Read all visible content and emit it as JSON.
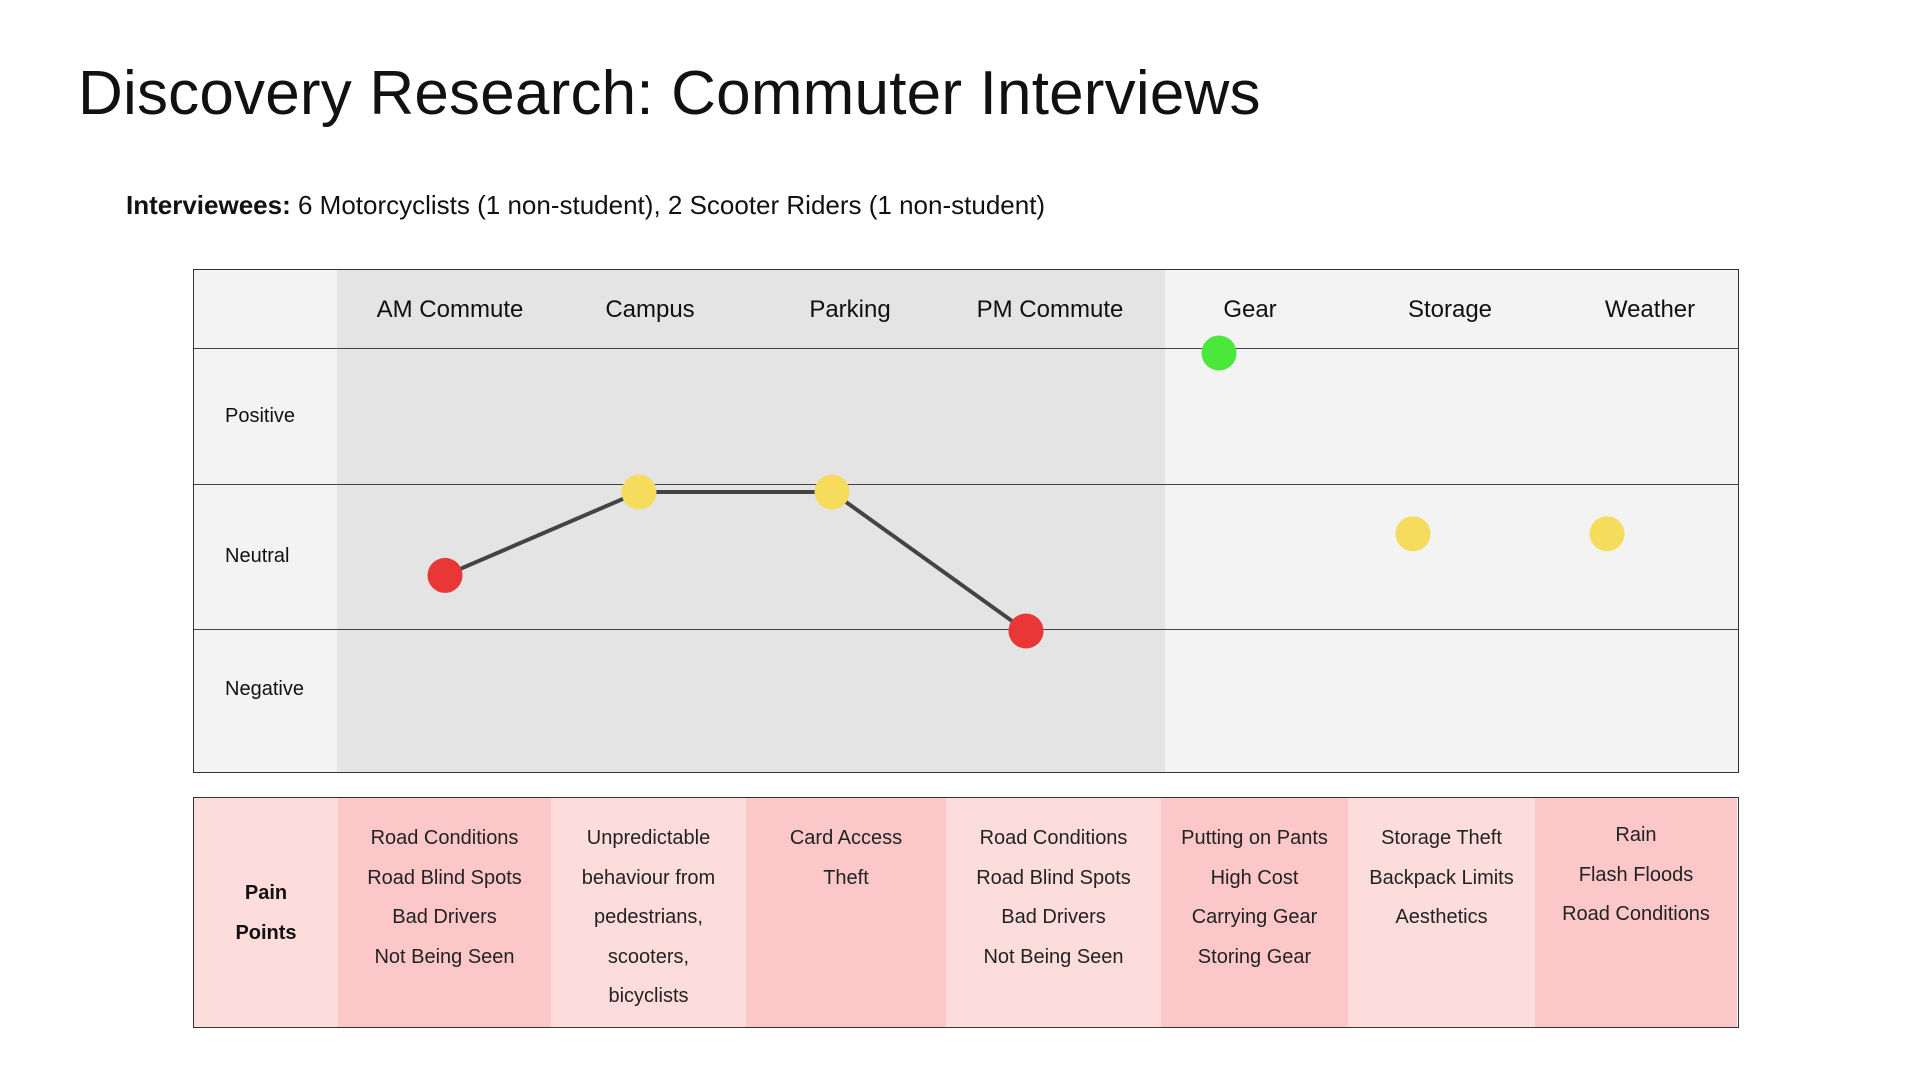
{
  "title": "Discovery Research: Commuter Interviews",
  "interviewees": {
    "label": "Interviewees:",
    "text": " 6 Motorcyclists (1 non-student), 2 Scooter Riders (1 non-student)"
  },
  "colors": {
    "positive": "#4ce73b",
    "neutral": "#f5dc5d",
    "negative": "#e93738",
    "line": "#444444",
    "shade": "#e4e4e4",
    "panel": "#f3f3f3",
    "pain_light": "#fddcdc",
    "pain_dark": "#fcc7c8"
  },
  "chart_data": {
    "type": "line",
    "categories": [
      "AM Commute",
      "Campus",
      "Parking",
      "PM Commute",
      "Gear",
      "Storage",
      "Weather"
    ],
    "levels": [
      "Positive",
      "Neutral",
      "Negative"
    ],
    "level_scale": {
      "Positive": 1,
      "Neutral": 0,
      "Negative": -1
    },
    "connected_categories": [
      "AM Commute",
      "Campus",
      "Parking",
      "PM Commute"
    ],
    "points": [
      {
        "category": "AM Commute",
        "sentiment": "Negative",
        "value": -0.6
      },
      {
        "category": "Campus",
        "sentiment": "Neutral",
        "value": 0.0
      },
      {
        "category": "Parking",
        "sentiment": "Neutral",
        "value": 0.0
      },
      {
        "category": "PM Commute",
        "sentiment": "Negative",
        "value": -1.0
      },
      {
        "category": "Gear",
        "sentiment": "Positive",
        "value": 1.0
      },
      {
        "category": "Storage",
        "sentiment": "Neutral",
        "value": -0.3
      },
      {
        "category": "Weather",
        "sentiment": "Neutral",
        "value": -0.3
      }
    ]
  },
  "pain_points": {
    "label_lines": [
      "Pain",
      "Points"
    ],
    "columns": [
      {
        "category": "AM Commute",
        "items": [
          "Road Conditions",
          "Road Blind Spots",
          "Bad Drivers",
          "Not Being Seen"
        ]
      },
      {
        "category": "Campus",
        "items": [
          "Unpredictable",
          "behaviour from",
          "pedestrians,",
          "scooters,",
          "bicyclists"
        ]
      },
      {
        "category": "Parking",
        "items": [
          "Card Access",
          "Theft"
        ]
      },
      {
        "category": "PM Commute",
        "items": [
          "Road Conditions",
          "Road Blind Spots",
          "Bad Drivers",
          "Not Being Seen"
        ]
      },
      {
        "category": "Gear",
        "items": [
          "Putting on Pants",
          "High Cost",
          "Carrying Gear",
          "Storing Gear"
        ]
      },
      {
        "category": "Storage",
        "items": [
          "Storage Theft",
          "Backpack Limits",
          "Aesthetics"
        ]
      },
      {
        "category": "Weather",
        "items": [
          "Rain",
          "Flash Floods",
          "Road Conditions"
        ]
      }
    ]
  }
}
